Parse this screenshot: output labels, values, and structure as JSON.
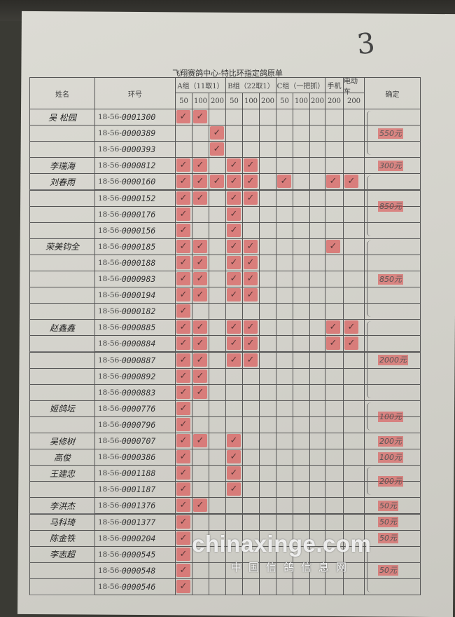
{
  "sheet_number": "3",
  "title": "飞翔赛鸽中心-特比环指定鸽原单",
  "headers": {
    "name": "姓名",
    "ring": "环号",
    "group_a": "A组（11取1）",
    "group_b": "B组（22取1）",
    "group_c": "C组（一把抓）",
    "phone": "手机",
    "ebike": "电动车",
    "confirm": "确定",
    "sub": [
      "50",
      "100",
      "200",
      "50",
      "100",
      "200",
      "50",
      "100",
      "200",
      "200",
      "200"
    ]
  },
  "ring_prefix": "18-56-",
  "rows": [
    {
      "name": "吴 松园",
      "ring": "0001300",
      "checks": [
        0,
        1
      ]
    },
    {
      "name": "",
      "ring": "0000389",
      "checks": [
        2
      ]
    },
    {
      "name": "",
      "ring": "0000393",
      "checks": [
        2
      ]
    },
    {
      "name": "李瑞海",
      "ring": "0000812",
      "checks": [
        0,
        1,
        3,
        4
      ]
    },
    {
      "name": "刘春雨",
      "ring": "0000160",
      "checks": [
        0,
        1,
        2,
        3,
        4,
        6,
        9,
        10
      ]
    },
    {
      "name": "",
      "ring": "0000152",
      "checks": [
        0,
        1,
        3,
        4
      ]
    },
    {
      "name": "",
      "ring": "0000176",
      "checks": [
        0,
        3
      ]
    },
    {
      "name": "",
      "ring": "0000156",
      "checks": [
        0,
        3
      ]
    },
    {
      "name": "荣美钧全",
      "ring": "0000185",
      "checks": [
        0,
        1,
        3,
        4,
        9
      ]
    },
    {
      "name": "",
      "ring": "0000188",
      "checks": [
        0,
        1,
        3,
        4
      ]
    },
    {
      "name": "",
      "ring": "0000983",
      "checks": [
        0,
        1,
        3,
        4
      ]
    },
    {
      "name": "",
      "ring": "0000194",
      "checks": [
        0,
        1,
        3,
        4
      ]
    },
    {
      "name": "",
      "ring": "0000182",
      "checks": [
        0
      ]
    },
    {
      "name": "赵鑫鑫",
      "ring": "0000885",
      "checks": [
        0,
        1,
        3,
        4,
        9,
        10
      ]
    },
    {
      "name": "",
      "ring": "0000884",
      "checks": [
        0,
        1,
        3,
        4,
        9,
        10
      ]
    },
    {
      "name": "",
      "ring": "0000887",
      "checks": [
        0,
        1,
        3,
        4
      ]
    },
    {
      "name": "",
      "ring": "0000892",
      "checks": [
        0,
        1
      ]
    },
    {
      "name": "",
      "ring": "0000883",
      "checks": [
        0,
        1
      ]
    },
    {
      "name": "姬鸽坛",
      "ring": "0000776",
      "checks": [
        0
      ]
    },
    {
      "name": "",
      "ring": "0000796",
      "checks": [
        0
      ]
    },
    {
      "name": "吴修树",
      "ring": "0000707",
      "checks": [
        0,
        1,
        3
      ]
    },
    {
      "name": "高俊",
      "ring": "0000386",
      "checks": [
        0,
        3
      ]
    },
    {
      "name": "王建忠",
      "ring": "0001188",
      "checks": [
        0,
        3
      ]
    },
    {
      "name": "",
      "ring": "0001187",
      "checks": [
        0,
        3
      ]
    },
    {
      "name": "李洪杰",
      "ring": "0001376",
      "checks": [
        0,
        1
      ]
    },
    {
      "name": "马科琦",
      "ring": "0001377",
      "checks": [
        0
      ]
    },
    {
      "name": "陈金铁",
      "ring": "0000204",
      "checks": [
        0
      ]
    },
    {
      "name": "李志超",
      "ring": "0000545",
      "checks": [
        0
      ]
    },
    {
      "name": "",
      "ring": "0000548",
      "checks": [
        0
      ]
    },
    {
      "name": "",
      "ring": "0000546",
      "checks": [
        0
      ]
    }
  ],
  "confirmations": [
    {
      "start": 0,
      "span": 3,
      "amount": "550元"
    },
    {
      "start": 3,
      "span": 1,
      "amount": "300元"
    },
    {
      "start": 4,
      "span": 4,
      "amount": "850元"
    },
    {
      "start": 8,
      "span": 5,
      "amount": "850元"
    },
    {
      "start": 13,
      "span": 5,
      "amount": "2000元"
    },
    {
      "start": 18,
      "span": 2,
      "amount": "100元"
    },
    {
      "start": 20,
      "span": 1,
      "amount": "200元"
    },
    {
      "start": 21,
      "span": 1,
      "amount": "100元"
    },
    {
      "start": 22,
      "span": 2,
      "amount": "200元"
    },
    {
      "start": 24,
      "span": 1,
      "amount": "50元"
    },
    {
      "start": 25,
      "span": 1,
      "amount": "50元"
    },
    {
      "start": 26,
      "span": 1,
      "amount": "50元"
    },
    {
      "start": 27,
      "span": 3,
      "amount": "50元"
    }
  ],
  "watermark": {
    "site": "chinaxinge.com",
    "name": "中国信鸽信息网"
  },
  "colors": {
    "stamp": "#dc5050",
    "paper": "#d8d7d0"
  }
}
